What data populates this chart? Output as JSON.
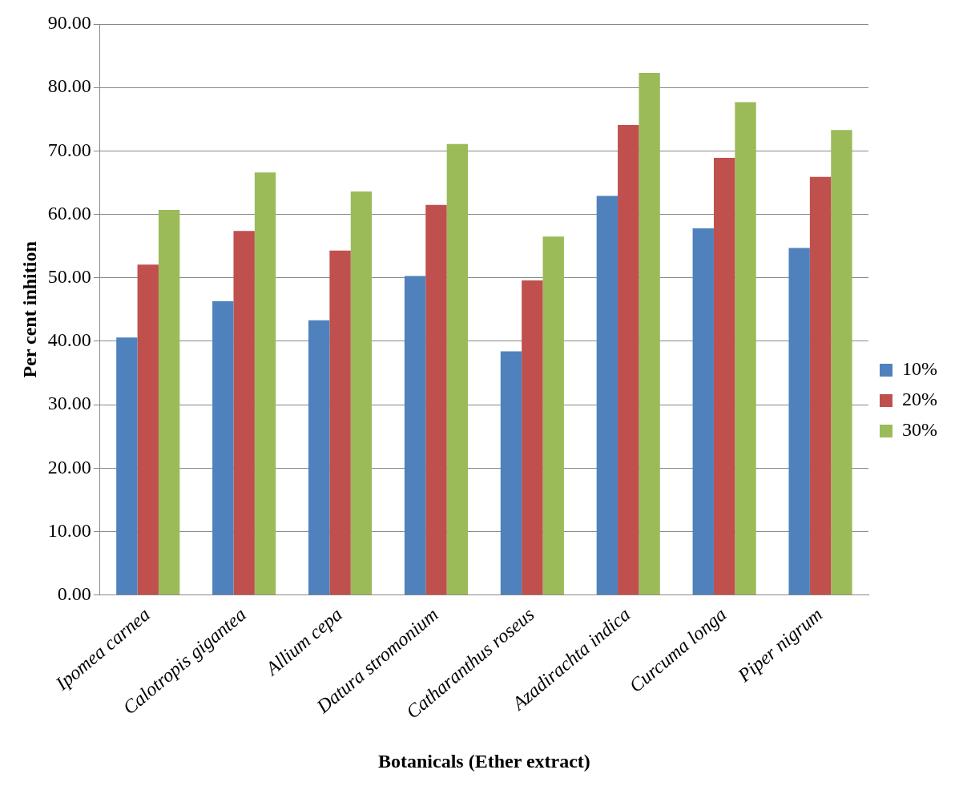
{
  "chart_data": {
    "type": "bar",
    "xlabel": "Botanicals (Ether extract)",
    "ylabel": "Per cent inhition",
    "categories": [
      "Ipomea carnea",
      "Calotropis gigantea",
      "Allium cepa",
      "Datura stromonium",
      "Catharanthus roseus",
      "Azadirachta indica",
      "Curcuma longa",
      "Piper nigrum"
    ],
    "series": [
      {
        "name": "10%",
        "color": "#4f81bd",
        "values": [
          40.6,
          46.3,
          43.3,
          50.3,
          38.4,
          62.9,
          57.8,
          54.7
        ]
      },
      {
        "name": "20%",
        "color": "#c0504d",
        "values": [
          52.1,
          57.4,
          54.3,
          61.5,
          49.6,
          74.1,
          68.9,
          65.9
        ]
      },
      {
        "name": "30%",
        "color": "#9bbb59",
        "values": [
          60.7,
          66.6,
          63.6,
          71.1,
          56.5,
          82.3,
          77.7,
          73.3
        ]
      }
    ],
    "ylim": [
      0,
      90
    ],
    "yticks": [
      {
        "value": 0,
        "label": "0.00"
      },
      {
        "value": 10,
        "label": "10.00"
      },
      {
        "value": 20,
        "label": "20.00"
      },
      {
        "value": 30,
        "label": "30.00"
      },
      {
        "value": 40,
        "label": "40.00"
      },
      {
        "value": 50,
        "label": "50.00"
      },
      {
        "value": 60,
        "label": "60.00"
      },
      {
        "value": 70,
        "label": "70.00"
      },
      {
        "value": 80,
        "label": "80.00"
      },
      {
        "value": 90,
        "label": "90.00"
      }
    ],
    "grid": "y",
    "legend": "right"
  }
}
